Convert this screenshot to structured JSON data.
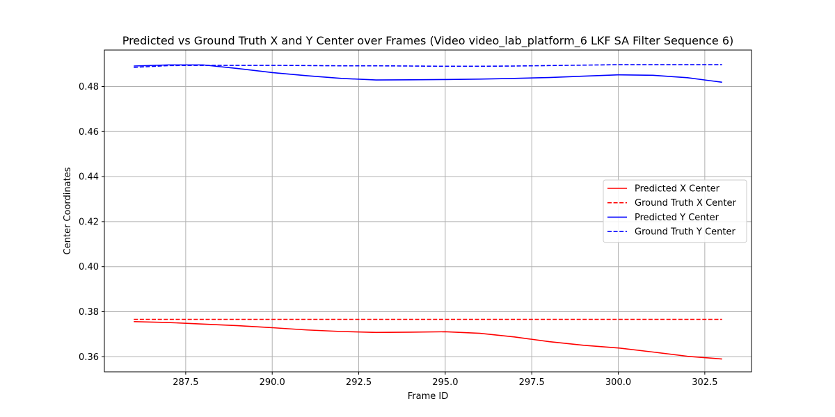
{
  "chart_data": {
    "type": "line",
    "title": "Predicted vs Ground Truth X and Y Center over Frames (Video video_lab_platform_6 LKF SA Filter Sequence 6)",
    "xlabel": "Frame ID",
    "ylabel": "Center Coordinates",
    "xlim": [
      285.15,
      303.85
    ],
    "ylim": [
      0.3533,
      0.4962
    ],
    "xticks": [
      287.5,
      290.0,
      292.5,
      295.0,
      297.5,
      300.0,
      302.5
    ],
    "xtick_labels": [
      "287.5",
      "290.0",
      "292.5",
      "295.0",
      "297.5",
      "300.0",
      "302.5"
    ],
    "yticks": [
      0.36,
      0.38,
      0.4,
      0.42,
      0.44,
      0.46,
      0.48
    ],
    "ytick_labels": [
      "0.36",
      "0.38",
      "0.40",
      "0.42",
      "0.44",
      "0.46",
      "0.48"
    ],
    "grid": true,
    "legend_position": "center-right",
    "x": [
      286,
      287,
      288,
      289,
      290,
      291,
      292,
      293,
      294,
      295,
      296,
      297,
      298,
      299,
      300,
      301,
      302,
      303
    ],
    "series": [
      {
        "name": "Predicted X Center",
        "color": "#ff0000",
        "style": "solid",
        "values": [
          0.3756,
          0.3752,
          0.3745,
          0.3738,
          0.3729,
          0.3719,
          0.3712,
          0.3708,
          0.3709,
          0.3711,
          0.3704,
          0.3688,
          0.3667,
          0.3651,
          0.3639,
          0.3621,
          0.3602,
          0.359
        ]
      },
      {
        "name": "Ground Truth X Center",
        "color": "#ff0000",
        "style": "dashed",
        "values": [
          0.3766,
          0.3766,
          0.3766,
          0.3766,
          0.3766,
          0.3766,
          0.3766,
          0.3766,
          0.3766,
          0.3766,
          0.3766,
          0.3766,
          0.3766,
          0.3766,
          0.3766,
          0.3766,
          0.3766,
          0.3766
        ]
      },
      {
        "name": "Predicted Y Center",
        "color": "#0000ff",
        "style": "solid",
        "values": [
          0.4891,
          0.4896,
          0.4896,
          0.488,
          0.4862,
          0.4848,
          0.4836,
          0.4829,
          0.483,
          0.4831,
          0.4833,
          0.4836,
          0.484,
          0.4846,
          0.4852,
          0.485,
          0.4839,
          0.4819
        ]
      },
      {
        "name": "Ground Truth Y Center",
        "color": "#0000ff",
        "style": "dashed",
        "values": [
          0.4885,
          0.4893,
          0.4894,
          0.4894,
          0.4894,
          0.4893,
          0.4892,
          0.4892,
          0.4891,
          0.489,
          0.489,
          0.4891,
          0.4893,
          0.4895,
          0.4897,
          0.4897,
          0.4897,
          0.4897
        ]
      }
    ]
  }
}
